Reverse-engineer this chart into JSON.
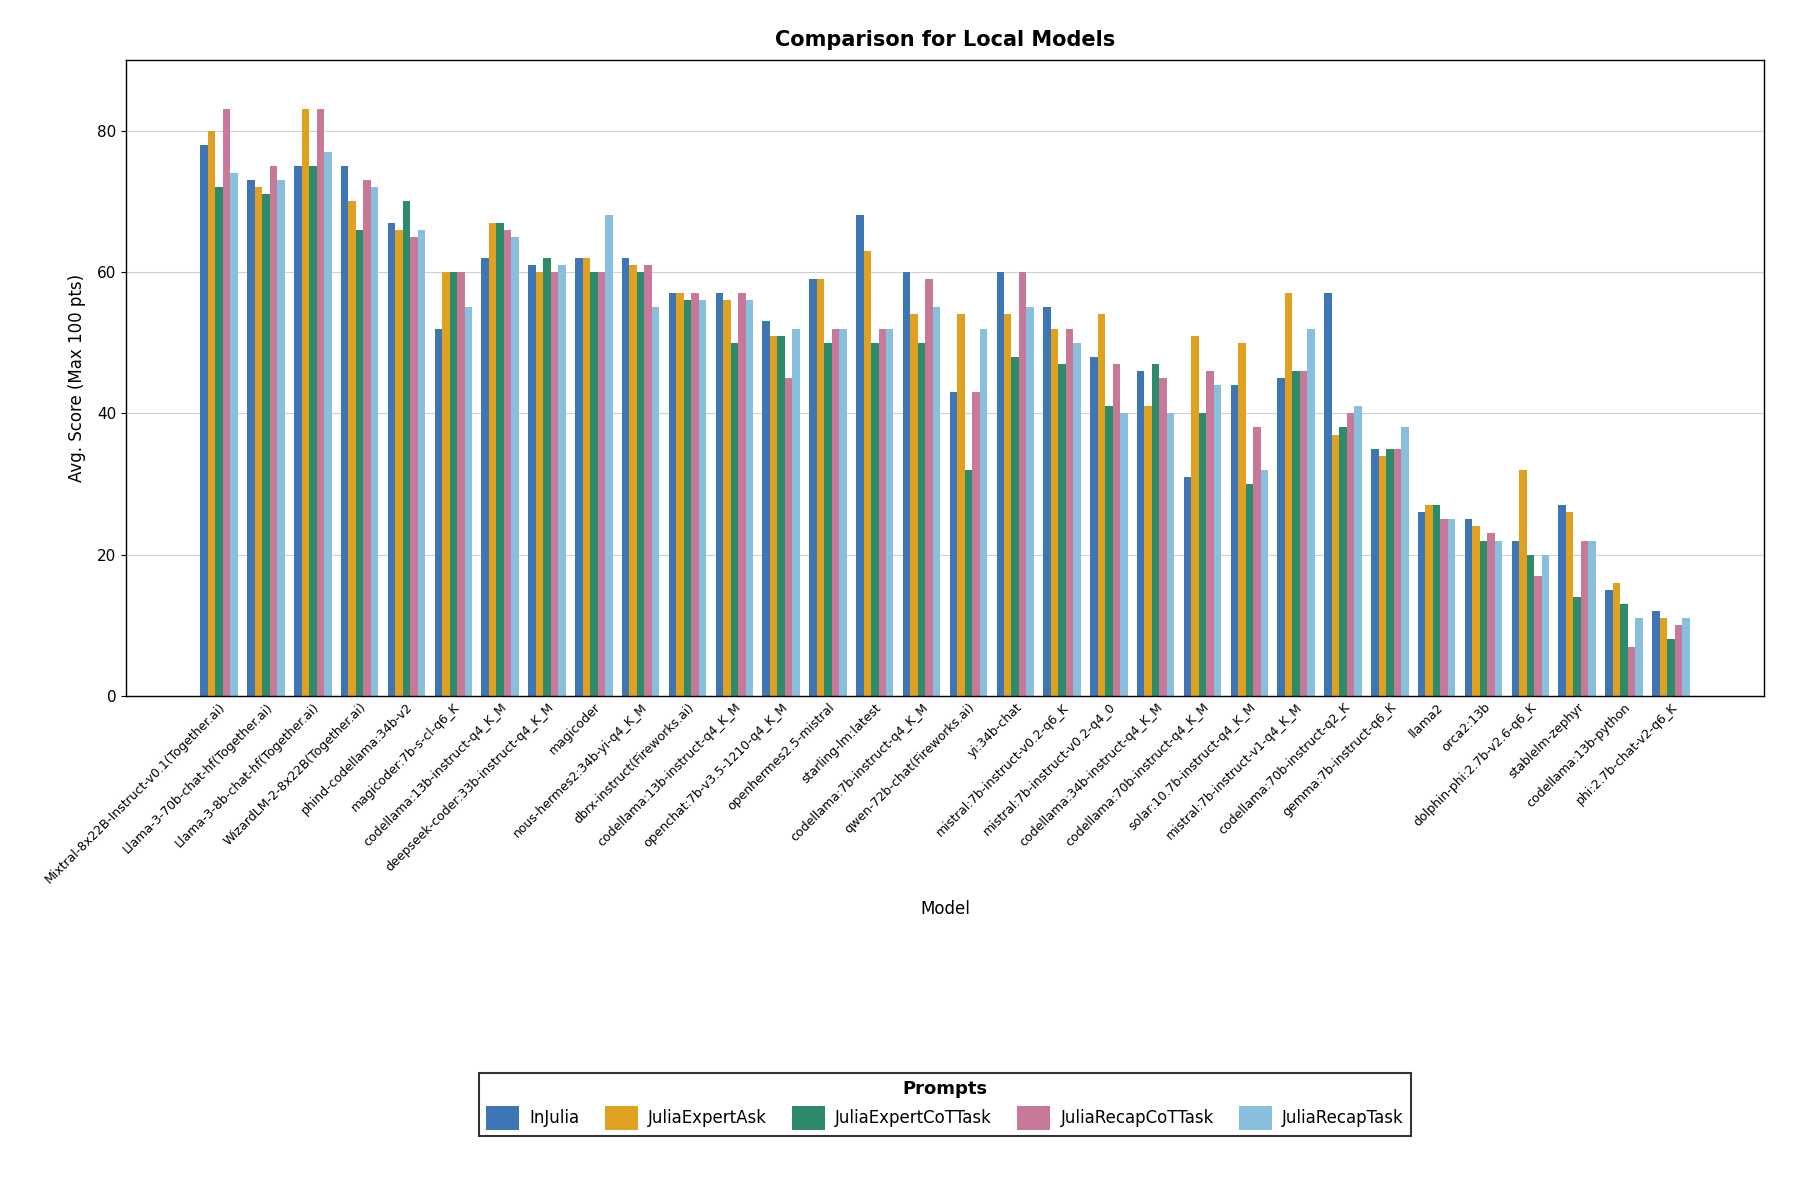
{
  "title": "Comparison for Local Models",
  "xlabel": "Model",
  "ylabel": "Avg. Score (Max 100 pts)",
  "ylim": [
    0,
    90
  ],
  "yticks": [
    0,
    20,
    40,
    60,
    80
  ],
  "legend_title": "Prompts",
  "prompts": [
    "InJulia",
    "JuliaExpertAsk",
    "JuliaExpertCoTTask",
    "JuliaRecapCoTTask",
    "JuliaRecapTask"
  ],
  "colors": [
    "#3E75B5",
    "#E0A020",
    "#2E8B6A",
    "#C87898",
    "#87BFDC"
  ],
  "models": [
    "Mixtral-8x22B-Instruct-v0.1(Together.ai)",
    "Llama-3-70b-chat-hf(Together.ai)",
    "Llama-3-8b-chat-hf(Together.ai)",
    "WizardLM-2-8x22B(Together.ai)",
    "phind-codellama:34b-v2",
    "magicoder:7b-s-cl-q6_K",
    "codellama:13b-instruct-q4_K_M",
    "deepseek-coder:33b-instruct-q4_K_M",
    "magicoder",
    "nous-hermes2:34b-yi-q4_K_M",
    "dbrx-instruct(Fireworks.ai)",
    "codellama:13b-instruct-q4_K_M",
    "openchat:7b-v3.5-1210-q4_K_M",
    "openhermes2.5-mistral",
    "starling-lm:latest",
    "codellama:7b-instruct-q4_K_M",
    "qwen-72b-chat(Fireworks.ai)",
    "yi:34b-chat",
    "mistral:7b-instruct-v0.2-q6_K",
    "mistral:7b-instruct-v0.2-q4_0",
    "codellama:34b-instruct-q4_K_M",
    "codellama:70b-instruct-q4_K_M",
    "solar:10.7b-instruct-q4_K_M",
    "mistral:7b-instruct-v1-q4_K_M",
    "codellama:70b-instruct-q2_K",
    "gemma:7b-instruct-q6_K",
    "llama2",
    "orca2:13b",
    "dolphin-phi:2.7b-v2.6-q6_K",
    "stablelm-zephyr",
    "codellama:13b-python",
    "phi:2.7b-chat-v2-q6_K"
  ],
  "scores": {
    "InJulia": [
      78,
      73,
      75,
      75,
      67,
      52,
      62,
      61,
      62,
      62,
      57,
      57,
      53,
      59,
      68,
      60,
      43,
      60,
      55,
      48,
      46,
      31,
      44,
      45,
      57,
      35,
      26,
      25,
      22,
      27,
      15,
      12
    ],
    "JuliaExpertAsk": [
      80,
      72,
      83,
      70,
      66,
      60,
      67,
      60,
      62,
      61,
      57,
      56,
      51,
      59,
      63,
      54,
      54,
      54,
      52,
      54,
      41,
      51,
      50,
      57,
      37,
      34,
      27,
      24,
      32,
      26,
      16,
      11
    ],
    "JuliaExpertCoTTask": [
      72,
      71,
      75,
      66,
      70,
      60,
      67,
      62,
      60,
      60,
      56,
      50,
      51,
      50,
      50,
      50,
      32,
      48,
      47,
      41,
      47,
      40,
      30,
      46,
      38,
      35,
      27,
      22,
      20,
      14,
      13,
      8
    ],
    "JuliaRecapCoTTask": [
      83,
      75,
      83,
      73,
      65,
      60,
      66,
      60,
      60,
      61,
      57,
      57,
      45,
      52,
      52,
      59,
      43,
      60,
      52,
      47,
      45,
      46,
      38,
      46,
      40,
      35,
      25,
      23,
      17,
      22,
      7,
      10
    ],
    "JuliaRecapTask": [
      74,
      73,
      77,
      72,
      66,
      55,
      65,
      61,
      68,
      55,
      56,
      56,
      52,
      52,
      52,
      55,
      52,
      55,
      50,
      40,
      40,
      44,
      32,
      52,
      41,
      38,
      25,
      22,
      20,
      22,
      11,
      11
    ]
  },
  "background_color": "#ffffff",
  "plot_background": "#ffffff",
  "grid_color": "#d0d0d0",
  "bar_width": 0.16,
  "title_fontsize": 15,
  "axis_label_fontsize": 12,
  "tick_fontsize": 9,
  "legend_fontsize": 12,
  "legend_title_fontsize": 13
}
